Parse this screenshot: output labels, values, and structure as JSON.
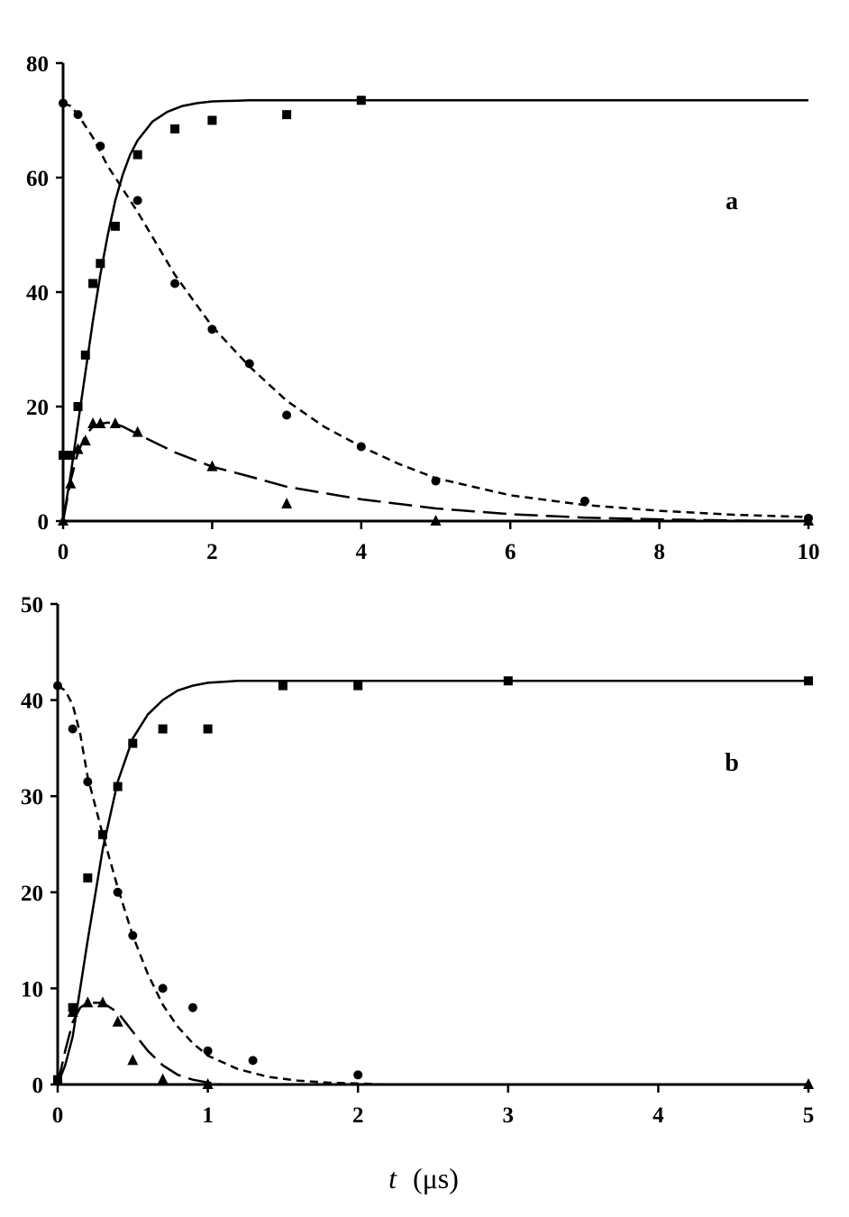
{
  "xlabel": {
    "var": "t",
    "unit": "(μs)"
  },
  "chart_data": [
    {
      "type": "scatter",
      "panel_label": "a",
      "xlim": [
        0,
        10
      ],
      "ylim": [
        0,
        80
      ],
      "xticks": [
        0,
        2,
        4,
        6,
        8,
        10
      ],
      "yticks": [
        0,
        20,
        40,
        60,
        80
      ],
      "xlabel": "",
      "ylabel": "",
      "grid": false,
      "series": [
        {
          "marker": "square",
          "points": [
            [
              0,
              11.5
            ],
            [
              0.1,
              11.5
            ],
            [
              0.2,
              20
            ],
            [
              0.3,
              29
            ],
            [
              0.4,
              41.5
            ],
            [
              0.5,
              45
            ],
            [
              0.7,
              51.5
            ],
            [
              1.0,
              64
            ],
            [
              1.5,
              68.5
            ],
            [
              2.0,
              70
            ],
            [
              3.0,
              71
            ],
            [
              4.0,
              73.5
            ]
          ],
          "fit": {
            "style": "solid",
            "x": [
              0,
              0.1,
              0.2,
              0.3,
              0.4,
              0.5,
              0.6,
              0.7,
              0.8,
              0.9,
              1.0,
              1.2,
              1.4,
              1.6,
              1.8,
              2.0,
              2.5,
              3.0,
              4.0,
              6.0,
              8.0,
              10.0
            ],
            "y": [
              0,
              8,
              17,
              26,
              35,
              43,
              50,
              56,
              60.5,
              64,
              66.5,
              69.8,
              71.5,
              72.5,
              73,
              73.3,
              73.5,
              73.5,
              73.5,
              73.5,
              73.5,
              73.5
            ]
          }
        },
        {
          "marker": "circle",
          "points": [
            [
              0,
              73
            ],
            [
              0.2,
              71
            ],
            [
              0.5,
              65.5
            ],
            [
              1.0,
              56
            ],
            [
              1.5,
              41.5
            ],
            [
              2.0,
              33.5
            ],
            [
              2.5,
              27.5
            ],
            [
              3.0,
              18.5
            ],
            [
              4.0,
              13
            ],
            [
              5.0,
              7
            ],
            [
              7.0,
              3.5
            ],
            [
              10.0,
              0.5
            ]
          ],
          "fit": {
            "style": "dashed",
            "x": [
              0,
              0.1,
              0.2,
              0.4,
              0.6,
              0.8,
              1.0,
              1.5,
              2.0,
              2.5,
              3.0,
              3.5,
              4.0,
              4.5,
              5.0,
              6.0,
              7.0,
              8.0,
              9.0,
              10.0
            ],
            "y": [
              73,
              72.5,
              71,
              67,
              62,
              58,
              54,
              43,
              34,
              27,
              21,
              16.5,
              13,
              10,
              7.5,
              4.5,
              2.8,
              1.8,
              1.1,
              0.7
            ]
          }
        },
        {
          "marker": "triangle",
          "points": [
            [
              0,
              0
            ],
            [
              0.1,
              6.5
            ],
            [
              0.2,
              12.5
            ],
            [
              0.3,
              14
            ],
            [
              0.4,
              17
            ],
            [
              0.5,
              17
            ],
            [
              0.7,
              17
            ],
            [
              1.0,
              15.5
            ],
            [
              2.0,
              9.5
            ],
            [
              3.0,
              3
            ],
            [
              5.0,
              0
            ],
            [
              10.0,
              0
            ]
          ],
          "fit": {
            "style": "longdash",
            "x": [
              0,
              0.1,
              0.2,
              0.3,
              0.4,
              0.5,
              0.6,
              0.7,
              0.8,
              1.0,
              1.5,
              2.0,
              2.5,
              3.0,
              4.0,
              5.0,
              6.0,
              7.0,
              8.0,
              9.0,
              10.0
            ],
            "y": [
              0,
              7,
              12,
              15,
              16.5,
              17,
              17.2,
              17,
              16.5,
              15.2,
              12,
              9.5,
              7.8,
              6,
              3.8,
              2.2,
              1.2,
              0.6,
              0.3,
              0.1,
              0
            ]
          }
        }
      ]
    },
    {
      "type": "scatter",
      "panel_label": "b",
      "xlim": [
        0,
        5
      ],
      "ylim": [
        0,
        50
      ],
      "xticks": [
        0,
        1,
        2,
        3,
        4,
        5
      ],
      "yticks": [
        0,
        10,
        20,
        30,
        40,
        50
      ],
      "xlabel": "",
      "ylabel": "",
      "grid": false,
      "series": [
        {
          "marker": "square",
          "points": [
            [
              0,
              0.5
            ],
            [
              0.1,
              8
            ],
            [
              0.2,
              21.5
            ],
            [
              0.3,
              26
            ],
            [
              0.4,
              31
            ],
            [
              0.5,
              35.5
            ],
            [
              0.7,
              37
            ],
            [
              1.0,
              37
            ],
            [
              1.5,
              41.5
            ],
            [
              2.0,
              41.5
            ],
            [
              3.0,
              42
            ],
            [
              5.0,
              42
            ]
          ],
          "fit": {
            "style": "solid",
            "x": [
              0,
              0.05,
              0.1,
              0.2,
              0.3,
              0.4,
              0.5,
              0.6,
              0.7,
              0.8,
              0.9,
              1.0,
              1.2,
              1.5,
              2.0,
              3.0,
              4.0,
              5.0
            ],
            "y": [
              0,
              2,
              5,
              15,
              24.5,
              31.5,
              36,
              38.5,
              40,
              41,
              41.5,
              41.8,
              42,
              42,
              42,
              42,
              42,
              42
            ]
          }
        },
        {
          "marker": "circle",
          "points": [
            [
              0,
              41.5
            ],
            [
              0.1,
              37
            ],
            [
              0.2,
              31.5
            ],
            [
              0.4,
              20
            ],
            [
              0.5,
              15.5
            ],
            [
              0.7,
              10
            ],
            [
              0.9,
              8
            ],
            [
              1.0,
              3.5
            ],
            [
              1.3,
              2.5
            ],
            [
              2.0,
              1
            ]
          ],
          "fit": {
            "style": "dashed",
            "x": [
              0,
              0.05,
              0.1,
              0.15,
              0.2,
              0.3,
              0.4,
              0.5,
              0.6,
              0.7,
              0.8,
              0.9,
              1.0,
              1.2,
              1.4,
              1.6,
              1.8,
              2.0,
              2.2
            ],
            "y": [
              41.5,
              41,
              39.5,
              36.5,
              32,
              26,
              20.5,
              15.5,
              11.5,
              8.3,
              6,
              4.3,
              3,
              1.6,
              0.8,
              0.4,
              0.2,
              0.1,
              0
            ]
          }
        },
        {
          "marker": "triangle",
          "points": [
            [
              0,
              0.5
            ],
            [
              0.1,
              7.5
            ],
            [
              0.2,
              8.5
            ],
            [
              0.3,
              8.5
            ],
            [
              0.4,
              6.5
            ],
            [
              0.5,
              2.5
            ],
            [
              0.7,
              0.5
            ],
            [
              1.0,
              0
            ],
            [
              5.0,
              0
            ]
          ],
          "fit": {
            "style": "longdash",
            "x": [
              0,
              0.05,
              0.1,
              0.15,
              0.2,
              0.3,
              0.4,
              0.5,
              0.6,
              0.7,
              0.8,
              0.9,
              1.0,
              1.1
            ],
            "y": [
              0,
              3.5,
              6.5,
              8,
              8.5,
              8.5,
              7.5,
              5.5,
              3.5,
              2,
              1,
              0.5,
              0.2,
              0
            ]
          }
        }
      ]
    }
  ]
}
